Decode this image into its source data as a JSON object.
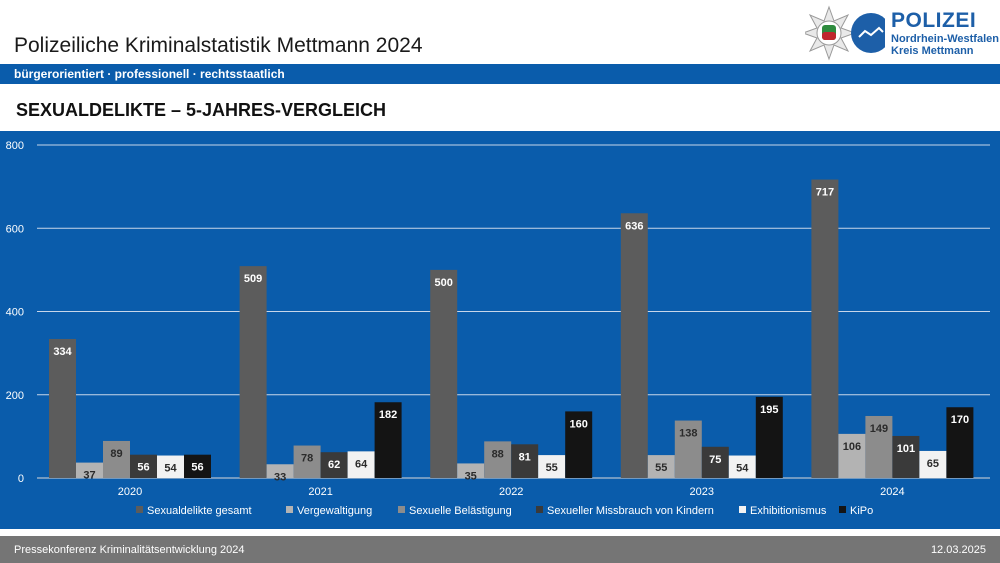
{
  "header": {
    "title": "Polizeiliche Kriminalstatistik Mettmann 2024",
    "tagline": "bürgerorientiert · professionell · rechtsstaatlich"
  },
  "logo": {
    "line1": "POLIZEI",
    "line2": "Nordrhein-Westfalen",
    "line3": "Kreis Mettmann"
  },
  "section_title": "SEXUALDELIKTE – 5-JAHRES-VERGLEICH",
  "footer": {
    "left": "Pressekonferenz Kriminalitätsentwicklung 2024",
    "right": "12.03.2025"
  },
  "colors": {
    "brand_blue": "#0a5cab",
    "footer_gray": "#757575"
  },
  "chart_data": {
    "type": "bar",
    "title": "SEXUALDELIKTE – 5-JAHRES-VERGLEICH",
    "categories": [
      "2020",
      "2021",
      "2022",
      "2023",
      "2024"
    ],
    "ylim": [
      0,
      800
    ],
    "yticks": [
      0,
      200,
      400,
      600,
      800
    ],
    "grid": true,
    "legend_position": "bottom",
    "series": [
      {
        "name": "Sexualdelikte gesamt",
        "color": "#5c5c5c",
        "label_color": "#ffffff",
        "values": [
          334,
          509,
          500,
          636,
          717
        ]
      },
      {
        "name": "Vergewaltigung",
        "color": "#b3b3b3",
        "label_color": "#2b2b2b",
        "values": [
          37,
          33,
          35,
          55,
          106
        ]
      },
      {
        "name": "Sexuelle Belästigung",
        "color": "#8c8c8c",
        "label_color": "#2b2b2b",
        "values": [
          89,
          78,
          88,
          138,
          149
        ]
      },
      {
        "name": "Sexueller Missbrauch von Kindern",
        "color": "#3a3a3a",
        "label_color": "#ffffff",
        "values": [
          56,
          62,
          81,
          75,
          101
        ]
      },
      {
        "name": "Exhibitionismus",
        "color": "#f2f2f2",
        "label_color": "#2b2b2b",
        "values": [
          54,
          64,
          55,
          54,
          65
        ]
      },
      {
        "name": "KiPo",
        "color": "#141414",
        "label_color": "#ffffff",
        "values": [
          56,
          182,
          160,
          195,
          170
        ]
      }
    ]
  }
}
